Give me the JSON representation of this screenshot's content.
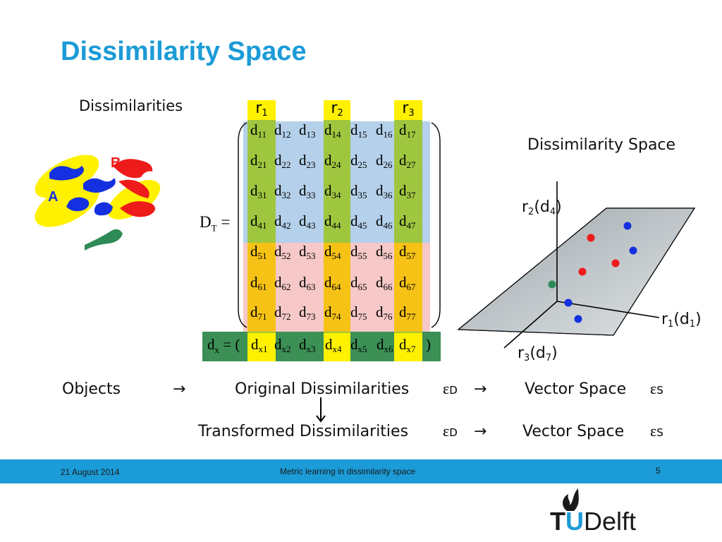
{
  "title": "Dissimilarity Space",
  "dissimilarities_label": "Dissimilarities",
  "blob_labels": {
    "a": "A",
    "b": "B"
  },
  "representatives": [
    {
      "base": "r",
      "sub": "1"
    },
    {
      "base": "r",
      "sub": "2"
    },
    {
      "base": "r",
      "sub": "3"
    }
  ],
  "matrix_label": {
    "base": "D",
    "sub": "T",
    "eq": "="
  },
  "matrix_cells": [
    [
      "11",
      "12",
      "13",
      "14",
      "15",
      "16",
      "17"
    ],
    [
      "21",
      "22",
      "23",
      "24",
      "25",
      "26",
      "27"
    ],
    [
      "31",
      "32",
      "33",
      "34",
      "35",
      "36",
      "37"
    ],
    [
      "41",
      "42",
      "43",
      "44",
      "45",
      "46",
      "47"
    ],
    [
      "51",
      "52",
      "53",
      "54",
      "55",
      "56",
      "57"
    ],
    [
      "61",
      "62",
      "63",
      "64",
      "65",
      "66",
      "67"
    ],
    [
      "71",
      "72",
      "73",
      "74",
      "75",
      "76",
      "77"
    ]
  ],
  "vector_row": {
    "label_base": "d",
    "label_sub": "x",
    "eq": "=",
    "open": "(",
    "close": ")",
    "cells": [
      "x1",
      "x2",
      "x3",
      "x4",
      "x5",
      "x6",
      "x7"
    ]
  },
  "cell_letter": "d",
  "space_title": "Dissimilarity Space",
  "axes": {
    "y": {
      "text": "r",
      "sub": "2",
      "arg": "(d",
      "arg_sub": "4",
      "close": ")"
    },
    "x": {
      "text": "r",
      "sub": "1",
      "arg": "(d",
      "arg_sub": "1",
      "close": ")"
    },
    "z": {
      "text": "r",
      "sub": "3",
      "arg": "(d",
      "arg_sub": "7",
      "close": ")"
    }
  },
  "colors": {
    "title": "#1b9bd7",
    "blue_region": "#b4d0ea",
    "pink_region": "#f6c8c8",
    "green_col": "#9fc63f",
    "orange_col": "#f6c215",
    "yellow": "#fff100",
    "dark_green": "#2e8b57",
    "footer": "#1b9bd7",
    "plane": "#b0b7bb"
  },
  "flow": {
    "objects": "Objects",
    "arrow": "→",
    "original": "Original Dissimilarities",
    "transformed": "Transformed Dissimilarities",
    "eps_d": "ε",
    "eps_d_sub": "D",
    "vector_space": "Vector Space",
    "eps_s": "ε",
    "eps_s_sub": "S"
  },
  "footer": {
    "date": "21 August 2014",
    "center": "Metric learning in dissimilarity space",
    "page": "5"
  },
  "logo": {
    "text_t": "T",
    "text_u": "U",
    "text_delft": "Delft"
  }
}
